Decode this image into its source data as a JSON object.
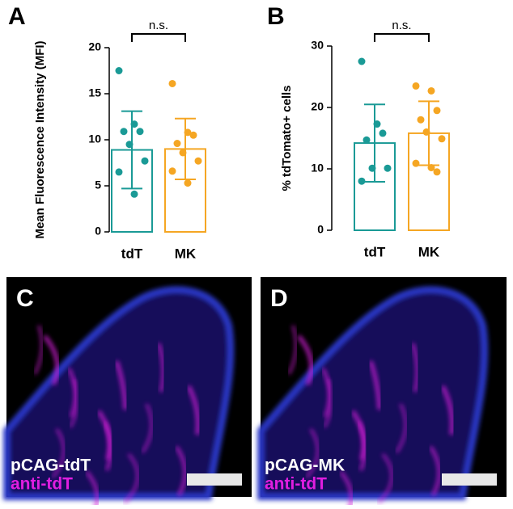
{
  "chart_data": [
    {
      "type": "bar",
      "panel": "A",
      "ylabel": "Mean Fluorescence Intensity (MFI)",
      "annotation": "n.s.",
      "categories": [
        "tdT",
        "MK"
      ],
      "colors": [
        "#1a9a96",
        "#f5a623"
      ],
      "values": [
        8.9,
        9.0
      ],
      "errors": [
        4.2,
        3.3
      ],
      "points": [
        [
          17.5,
          11.7,
          10.9,
          10.9,
          9.5,
          7.7,
          6.5,
          4.1
        ],
        [
          16.1,
          10.8,
          10.5,
          9.6,
          8.6,
          7.7,
          6.6,
          5.3
        ]
      ],
      "ylim": [
        0,
        20
      ],
      "yticks": [
        0,
        5,
        10,
        15,
        20
      ]
    },
    {
      "type": "bar",
      "panel": "B",
      "ylabel": "% tdTomato+ cells",
      "annotation": "n.s.",
      "categories": [
        "tdT",
        "MK"
      ],
      "colors": [
        "#1a9a96",
        "#f5a623"
      ],
      "values": [
        14.2,
        15.8
      ],
      "errors": [
        6.3,
        5.2
      ],
      "points": [
        [
          27.5,
          17.3,
          15.8,
          14.7,
          10.1,
          10.1,
          8.0
        ],
        [
          23.5,
          22.7,
          19.5,
          18.0,
          16.0,
          14.9,
          10.9,
          10.2,
          9.5
        ]
      ],
      "ylim": [
        0,
        30
      ],
      "yticks": [
        0,
        10,
        20,
        30
      ]
    }
  ],
  "images": [
    {
      "panel": "C",
      "lines": [
        "pCAG-tdT",
        "anti-tdT"
      ]
    },
    {
      "panel": "D",
      "lines": [
        "pCAG-MK",
        "anti-tdT"
      ]
    }
  ]
}
